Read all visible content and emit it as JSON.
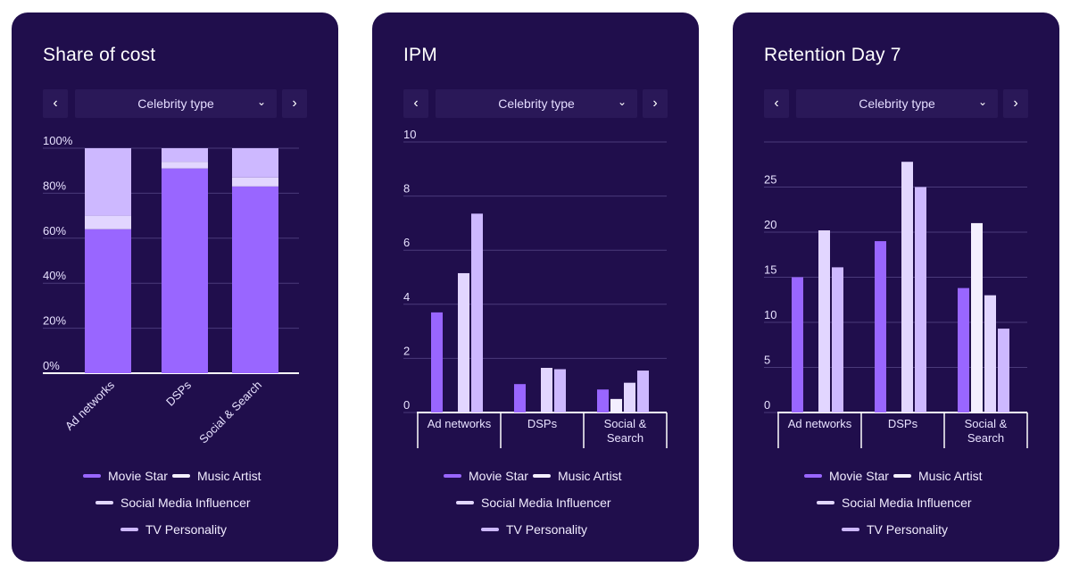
{
  "colors": {
    "card_bg": "#200e4c",
    "movie_star": "#9966ff",
    "music_artist": "#f4efff",
    "social_media_influencer": "#e2d6ff",
    "tv_personality": "#cdb8ff",
    "grid": "#4a3a7a",
    "axis": "#ffffff"
  },
  "filter": {
    "label": "Celebrity type",
    "prev_icon": "chevron-left-icon",
    "next_icon": "chevron-right-icon",
    "dropdown_icon": "chevron-down-icon"
  },
  "legend": [
    {
      "name": "Movie Star",
      "color": "#9966ff"
    },
    {
      "name": "Music Artist",
      "color": "#f4efff"
    },
    {
      "name": "Social Media Influencer",
      "color": "#e2d6ff"
    },
    {
      "name": "TV Personality",
      "color": "#cdb8ff"
    }
  ],
  "chart_data": [
    {
      "type": "bar",
      "stacked": true,
      "title": "Share of cost",
      "categories": [
        "Ad networks",
        "DSPs",
        "Social & Search"
      ],
      "series": [
        {
          "name": "Movie Star",
          "values": [
            64,
            91,
            83
          ]
        },
        {
          "name": "Music Artist",
          "values": [
            0,
            0,
            0
          ]
        },
        {
          "name": "Social Media Influencer",
          "values": [
            6,
            3,
            4
          ]
        },
        {
          "name": "TV Personality",
          "values": [
            30,
            6,
            13
          ]
        }
      ],
      "ylim": [
        0,
        100
      ],
      "yticks": [
        "0%",
        "20%",
        "40%",
        "60%",
        "80%",
        "100%"
      ],
      "grid": true,
      "legend_position": "bottom"
    },
    {
      "type": "bar",
      "stacked": false,
      "title": "IPM",
      "categories": [
        "Ad networks",
        "DSPs",
        "Social & Search"
      ],
      "series": [
        {
          "name": "Movie Star",
          "values": [
            3.7,
            1.05,
            0.85
          ]
        },
        {
          "name": "Music Artist",
          "values": [
            0,
            0,
            0.5
          ]
        },
        {
          "name": "Social Media Influencer",
          "values": [
            5.15,
            1.65,
            1.1
          ]
        },
        {
          "name": "TV Personality",
          "values": [
            7.35,
            1.6,
            1.55
          ]
        }
      ],
      "ylim": [
        0,
        10
      ],
      "yticks": [
        "0",
        "2",
        "4",
        "6",
        "8",
        "10"
      ],
      "grid": true,
      "legend_position": "bottom"
    },
    {
      "type": "bar",
      "stacked": false,
      "title": "Retention Day 7",
      "categories": [
        "Ad networks",
        "DSPs",
        "Social & Search"
      ],
      "series": [
        {
          "name": "Movie Star",
          "values": [
            15,
            19,
            13.8
          ]
        },
        {
          "name": "Music Artist",
          "values": [
            0,
            0,
            21
          ]
        },
        {
          "name": "Social Media Influencer",
          "values": [
            20.2,
            27.8,
            13
          ]
        },
        {
          "name": "TV Personality",
          "values": [
            16.1,
            25,
            9.3
          ]
        }
      ],
      "ylim": [
        0,
        30
      ],
      "yticks": [
        "0",
        "5",
        "10",
        "15",
        "20",
        "25"
      ],
      "grid": true,
      "legend_position": "bottom"
    }
  ]
}
